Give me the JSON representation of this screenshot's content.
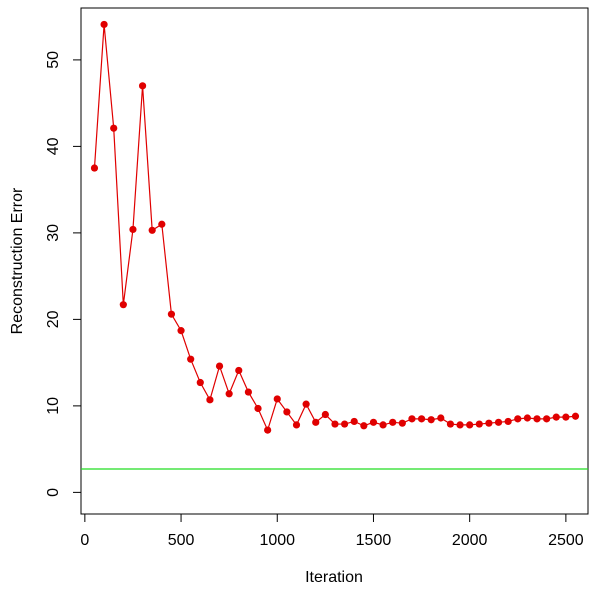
{
  "chart_data": {
    "type": "line",
    "title": "",
    "xlabel": "Iteration",
    "ylabel": "Reconstruction Error",
    "xlim": [
      -20,
      2615
    ],
    "ylim": [
      -2.5,
      56
    ],
    "xticks": [
      0,
      500,
      1000,
      1500,
      2000,
      2500
    ],
    "xtick_labels": [
      "0",
      "500",
      "1000",
      "1500",
      "2000",
      "2500"
    ],
    "yticks": [
      0,
      10,
      20,
      30,
      40,
      50
    ],
    "ytick_labels": [
      "0",
      "10",
      "20",
      "30",
      "40",
      "50"
    ],
    "grid": false,
    "legend": "none",
    "series": [
      {
        "color": "#e00000",
        "marker": "circle",
        "x": [
          50,
          100,
          150,
          200,
          250,
          300,
          350,
          400,
          450,
          500,
          550,
          600,
          650,
          700,
          750,
          800,
          850,
          900,
          950,
          1000,
          1050,
          1100,
          1150,
          1200,
          1250,
          1300,
          1350,
          1400,
          1450,
          1500,
          1550,
          1600,
          1650,
          1700,
          1750,
          1800,
          1850,
          1900,
          1950,
          2000,
          2050,
          2100,
          2150,
          2200,
          2250,
          2300,
          2350,
          2400,
          2450,
          2500,
          2550
        ],
        "y": [
          37.5,
          54.1,
          42.1,
          21.7,
          30.4,
          47.0,
          30.3,
          31.0,
          20.6,
          18.7,
          15.4,
          12.7,
          10.7,
          14.6,
          11.4,
          14.1,
          11.6,
          9.7,
          7.2,
          10.8,
          9.3,
          7.8,
          10.2,
          8.1,
          9.0,
          7.9,
          7.9,
          8.2,
          7.7,
          8.1,
          7.8,
          8.1,
          8.0,
          8.5,
          8.5,
          8.4,
          8.6,
          7.9,
          7.8,
          7.8,
          7.9,
          8.0,
          8.1,
          8.2,
          8.5,
          8.6,
          8.5,
          8.5,
          8.7,
          8.7,
          8.8
        ]
      }
    ],
    "hlines": [
      {
        "y": 2.7,
        "color": "#22dd22"
      }
    ]
  }
}
